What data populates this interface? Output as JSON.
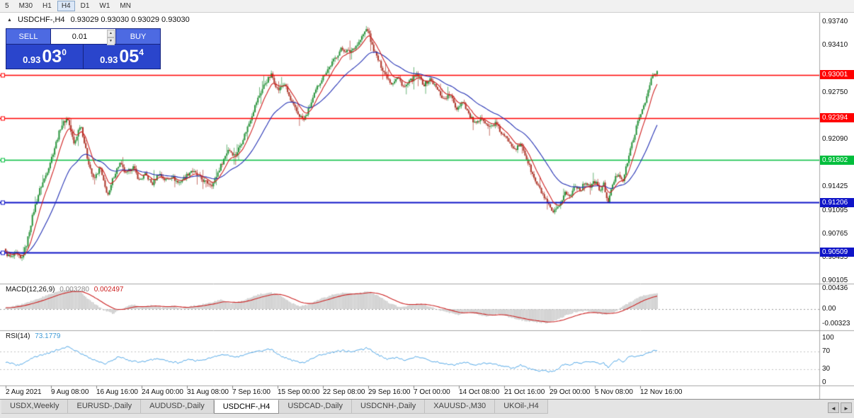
{
  "toolbar": {
    "timeframes": [
      "5",
      "M30",
      "H1",
      "H4",
      "D1",
      "W1",
      "MN"
    ],
    "active": "H4"
  },
  "chart": {
    "symbol_period": "USDCHF-,H4",
    "ohlc_text": "0.93029 0.93030 0.93029 0.93030",
    "time_labels": [
      "2 Aug 2021",
      "9 Aug 08:00",
      "16 Aug 16:00",
      "24 Aug 00:00",
      "31 Aug 08:00",
      "7 Sep 16:00",
      "15 Sep 00:00",
      "22 Sep 08:00",
      "29 Sep 16:00",
      "7 Oct 00:00",
      "14 Oct 08:00",
      "21 Oct 16:00",
      "29 Oct 00:00",
      "5 Nov 08:00",
      "12 Nov 16:00"
    ],
    "price_scale": {
      "ticks": [
        "0.93740",
        "0.93410",
        "0.92750",
        "0.92090",
        "0.91425",
        "0.91095",
        "0.90765",
        "0.90435",
        "0.90105"
      ]
    },
    "levels": [
      {
        "price": "0.93001",
        "color": "#FF0000"
      },
      {
        "price": "0.92394",
        "color": "#FF0000"
      },
      {
        "price": "0.91802",
        "color": "#00BE3C"
      },
      {
        "price": "0.91206",
        "color": "#0F14C8"
      },
      {
        "price": "0.90509",
        "color": "#0F14C8"
      }
    ]
  },
  "trade": {
    "sell_label": "SELL",
    "buy_label": "BUY",
    "volume": "0.01",
    "sell": {
      "base": "0.93",
      "main": "03",
      "sup": "0"
    },
    "buy": {
      "base": "0.93",
      "main": "05",
      "sup": "4"
    }
  },
  "icons": {
    "collapse": "▲",
    "spinner_up": "▲",
    "spinner_down": "▼",
    "tab_scroll_left": "◄",
    "tab_scroll_right": "►"
  },
  "macd": {
    "name": "MACD(12,26,9)",
    "value": "0.003280",
    "signal_value": "0.002497",
    "scale": [
      "0.00436",
      "0.00",
      "-0.00323"
    ]
  },
  "rsi": {
    "name": "RSI(14)",
    "value": "73.1779",
    "scale": [
      "100",
      "70",
      "30",
      "0"
    ]
  },
  "tabs": {
    "items": [
      "USDX,Weekly",
      "EURUSD-,Daily",
      "AUDUSD-,Daily",
      "USDCHF-,H4",
      "USDCAD-,Daily",
      "USDCNH-,Daily",
      "XAUUSD-,M30",
      "UKOil-,H4"
    ],
    "active": "USDCHF-,H4"
  },
  "colors": {
    "candle_up": "#2E9640",
    "candle_down": "#B03A2E",
    "ma_fast": "#D02020",
    "ma_slow": "#2330B4",
    "macd_hist": "#C9C9C9",
    "macd_signal": "#CC2020",
    "rsi_line": "#4DA6E8",
    "level_red": "#FF0000",
    "level_green": "#00BE3C",
    "level_blue": "#0F14C8"
  },
  "chart_data": {
    "type": "candlestick",
    "symbol": "USDCHF-",
    "timeframe": "H4",
    "title": "USDCHF-,H4",
    "current_ohlc": [
      0.93029,
      0.9303,
      0.93029,
      0.9303
    ],
    "y_axis": {
      "top": 0.9385,
      "bottom": 0.9007
    },
    "bars": 440,
    "x_range_labels": [
      "2 Aug 2021",
      "12 Nov 16:00"
    ],
    "horizontal_levels": [
      0.93001,
      0.92394,
      0.91802,
      0.91206,
      0.90509
    ],
    "price_path": [
      [
        0.0,
        0.905
      ],
      [
        0.008,
        0.9043
      ],
      [
        0.016,
        0.9049
      ],
      [
        0.024,
        0.904
      ],
      [
        0.032,
        0.9062
      ],
      [
        0.042,
        0.9105
      ],
      [
        0.052,
        0.9138
      ],
      [
        0.062,
        0.916
      ],
      [
        0.072,
        0.9188
      ],
      [
        0.085,
        0.9228
      ],
      [
        0.095,
        0.924
      ],
      [
        0.105,
        0.9202
      ],
      [
        0.115,
        0.9232
      ],
      [
        0.125,
        0.9185
      ],
      [
        0.135,
        0.9152
      ],
      [
        0.145,
        0.917
      ],
      [
        0.152,
        0.9143
      ],
      [
        0.158,
        0.913
      ],
      [
        0.165,
        0.9156
      ],
      [
        0.175,
        0.9176
      ],
      [
        0.185,
        0.916
      ],
      [
        0.195,
        0.9172
      ],
      [
        0.205,
        0.9152
      ],
      [
        0.215,
        0.916
      ],
      [
        0.225,
        0.9146
      ],
      [
        0.235,
        0.9162
      ],
      [
        0.245,
        0.9152
      ],
      [
        0.255,
        0.9158
      ],
      [
        0.265,
        0.9148
      ],
      [
        0.275,
        0.9156
      ],
      [
        0.285,
        0.9166
      ],
      [
        0.295,
        0.9158
      ],
      [
        0.305,
        0.915
      ],
      [
        0.318,
        0.9146
      ],
      [
        0.33,
        0.9172
      ],
      [
        0.342,
        0.9196
      ],
      [
        0.352,
        0.9186
      ],
      [
        0.362,
        0.9205
      ],
      [
        0.372,
        0.9228
      ],
      [
        0.385,
        0.9262
      ],
      [
        0.398,
        0.9288
      ],
      [
        0.408,
        0.93
      ],
      [
        0.418,
        0.9278
      ],
      [
        0.428,
        0.9288
      ],
      [
        0.438,
        0.9262
      ],
      [
        0.448,
        0.9246
      ],
      [
        0.458,
        0.9236
      ],
      [
        0.468,
        0.9258
      ],
      [
        0.478,
        0.9282
      ],
      [
        0.49,
        0.9302
      ],
      [
        0.502,
        0.9318
      ],
      [
        0.515,
        0.9336
      ],
      [
        0.528,
        0.9332
      ],
      [
        0.542,
        0.9345
      ],
      [
        0.555,
        0.9366
      ],
      [
        0.562,
        0.9342
      ],
      [
        0.572,
        0.932
      ],
      [
        0.582,
        0.9302
      ],
      [
        0.592,
        0.9288
      ],
      [
        0.602,
        0.9296
      ],
      [
        0.612,
        0.9282
      ],
      [
        0.622,
        0.9292
      ],
      [
        0.632,
        0.93
      ],
      [
        0.642,
        0.9286
      ],
      [
        0.652,
        0.9294
      ],
      [
        0.662,
        0.928
      ],
      [
        0.672,
        0.9266
      ],
      [
        0.682,
        0.9272
      ],
      [
        0.692,
        0.9252
      ],
      [
        0.702,
        0.9264
      ],
      [
        0.712,
        0.9242
      ],
      [
        0.722,
        0.923
      ],
      [
        0.732,
        0.924
      ],
      [
        0.742,
        0.9226
      ],
      [
        0.752,
        0.9232
      ],
      [
        0.762,
        0.9216
      ],
      [
        0.772,
        0.9208
      ],
      [
        0.782,
        0.9196
      ],
      [
        0.792,
        0.9202
      ],
      [
        0.802,
        0.9176
      ],
      [
        0.812,
        0.9152
      ],
      [
        0.822,
        0.9136
      ],
      [
        0.832,
        0.9118
      ],
      [
        0.84,
        0.9106
      ],
      [
        0.85,
        0.9114
      ],
      [
        0.858,
        0.9136
      ],
      [
        0.866,
        0.9128
      ],
      [
        0.874,
        0.9146
      ],
      [
        0.882,
        0.9138
      ],
      [
        0.89,
        0.915
      ],
      [
        0.898,
        0.9143
      ],
      [
        0.905,
        0.9151
      ],
      [
        0.912,
        0.9137
      ],
      [
        0.918,
        0.9146
      ],
      [
        0.925,
        0.912
      ],
      [
        0.932,
        0.9148
      ],
      [
        0.94,
        0.9162
      ],
      [
        0.948,
        0.9152
      ],
      [
        0.955,
        0.918
      ],
      [
        0.962,
        0.9206
      ],
      [
        0.97,
        0.9232
      ],
      [
        0.978,
        0.9254
      ],
      [
        0.985,
        0.9272
      ],
      [
        0.992,
        0.9298
      ],
      [
        1.0,
        0.9303
      ]
    ],
    "macd_path": [
      [
        0.0,
        0.0002
      ],
      [
        0.03,
        0.0012
      ],
      [
        0.06,
        0.0028
      ],
      [
        0.085,
        0.004
      ],
      [
        0.1,
        0.0042
      ],
      [
        0.115,
        0.0036
      ],
      [
        0.13,
        0.0018
      ],
      [
        0.15,
        -0.0002
      ],
      [
        0.165,
        -0.001
      ],
      [
        0.18,
        0.0002
      ],
      [
        0.195,
        0.001
      ],
      [
        0.21,
        0.0004
      ],
      [
        0.225,
        0.0009
      ],
      [
        0.24,
        0.0003
      ],
      [
        0.255,
        0.0007
      ],
      [
        0.27,
        0.0002
      ],
      [
        0.285,
        0.0006
      ],
      [
        0.3,
        0.001
      ],
      [
        0.315,
        0.0014
      ],
      [
        0.33,
        0.002
      ],
      [
        0.345,
        0.0012
      ],
      [
        0.36,
        0.0016
      ],
      [
        0.375,
        0.0024
      ],
      [
        0.39,
        0.0032
      ],
      [
        0.405,
        0.0036
      ],
      [
        0.42,
        0.003
      ],
      [
        0.435,
        0.0016
      ],
      [
        0.45,
        0.0006
      ],
      [
        0.465,
        0.001
      ],
      [
        0.48,
        0.002
      ],
      [
        0.5,
        0.003
      ],
      [
        0.52,
        0.0036
      ],
      [
        0.54,
        0.0034
      ],
      [
        0.557,
        0.0038
      ],
      [
        0.575,
        0.0026
      ],
      [
        0.59,
        0.0012
      ],
      [
        0.605,
        0.0004
      ],
      [
        0.62,
        0.0008
      ],
      [
        0.635,
        0.0012
      ],
      [
        0.65,
        0.0006
      ],
      [
        0.665,
        -0.0002
      ],
      [
        0.68,
        -0.0008
      ],
      [
        0.695,
        -0.0012
      ],
      [
        0.71,
        -0.0006
      ],
      [
        0.725,
        -0.0012
      ],
      [
        0.74,
        -0.0016
      ],
      [
        0.755,
        -0.001
      ],
      [
        0.77,
        -0.0016
      ],
      [
        0.785,
        -0.0022
      ],
      [
        0.8,
        -0.0026
      ],
      [
        0.815,
        -0.0028
      ],
      [
        0.83,
        -0.003
      ],
      [
        0.845,
        -0.0024
      ],
      [
        0.86,
        -0.0014
      ],
      [
        0.875,
        -0.0006
      ],
      [
        0.89,
        -0.0004
      ],
      [
        0.905,
        -0.0008
      ],
      [
        0.92,
        -0.0012
      ],
      [
        0.935,
        -0.0006
      ],
      [
        0.95,
        0.0008
      ],
      [
        0.965,
        0.002
      ],
      [
        0.98,
        0.003
      ],
      [
        1.0,
        0.0033
      ]
    ],
    "rsi_path": [
      [
        0.0,
        46
      ],
      [
        0.02,
        38
      ],
      [
        0.04,
        55
      ],
      [
        0.06,
        64
      ],
      [
        0.08,
        74
      ],
      [
        0.095,
        80
      ],
      [
        0.11,
        70
      ],
      [
        0.125,
        58
      ],
      [
        0.14,
        48
      ],
      [
        0.152,
        42
      ],
      [
        0.165,
        52
      ],
      [
        0.175,
        58
      ],
      [
        0.19,
        50
      ],
      [
        0.205,
        45
      ],
      [
        0.22,
        50
      ],
      [
        0.235,
        54
      ],
      [
        0.25,
        48
      ],
      [
        0.265,
        44
      ],
      [
        0.28,
        52
      ],
      [
        0.295,
        49
      ],
      [
        0.31,
        54
      ],
      [
        0.325,
        60
      ],
      [
        0.34,
        63
      ],
      [
        0.352,
        56
      ],
      [
        0.365,
        62
      ],
      [
        0.38,
        68
      ],
      [
        0.395,
        72
      ],
      [
        0.408,
        75
      ],
      [
        0.42,
        62
      ],
      [
        0.435,
        52
      ],
      [
        0.448,
        46
      ],
      [
        0.458,
        44
      ],
      [
        0.47,
        55
      ],
      [
        0.485,
        63
      ],
      [
        0.5,
        68
      ],
      [
        0.515,
        72
      ],
      [
        0.53,
        70
      ],
      [
        0.545,
        73
      ],
      [
        0.555,
        78
      ],
      [
        0.57,
        64
      ],
      [
        0.585,
        52
      ],
      [
        0.6,
        56
      ],
      [
        0.615,
        50
      ],
      [
        0.63,
        58
      ],
      [
        0.645,
        52
      ],
      [
        0.66,
        47
      ],
      [
        0.675,
        43
      ],
      [
        0.69,
        40
      ],
      [
        0.705,
        46
      ],
      [
        0.72,
        38
      ],
      [
        0.735,
        44
      ],
      [
        0.75,
        41
      ],
      [
        0.765,
        37
      ],
      [
        0.78,
        33
      ],
      [
        0.79,
        40
      ],
      [
        0.802,
        32
      ],
      [
        0.815,
        28
      ],
      [
        0.83,
        26
      ],
      [
        0.84,
        24
      ],
      [
        0.85,
        34
      ],
      [
        0.858,
        42
      ],
      [
        0.866,
        38
      ],
      [
        0.874,
        46
      ],
      [
        0.882,
        42
      ],
      [
        0.89,
        48
      ],
      [
        0.898,
        44
      ],
      [
        0.905,
        48
      ],
      [
        0.912,
        40
      ],
      [
        0.918,
        44
      ],
      [
        0.925,
        33
      ],
      [
        0.932,
        45
      ],
      [
        0.94,
        52
      ],
      [
        0.948,
        47
      ],
      [
        0.955,
        56
      ],
      [
        0.962,
        61
      ],
      [
        0.97,
        58
      ],
      [
        0.978,
        63
      ],
      [
        0.985,
        66
      ],
      [
        0.992,
        70
      ],
      [
        1.0,
        73.2
      ]
    ],
    "rsi_levels": [
      70,
      30
    ]
  }
}
